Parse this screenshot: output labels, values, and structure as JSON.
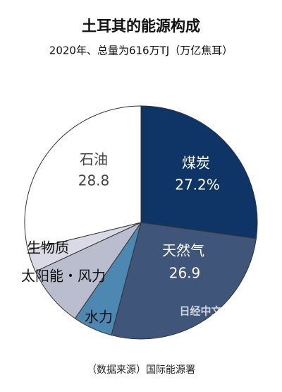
{
  "chart_data": {
    "type": "pie",
    "title": "土耳其的能源构成",
    "subtitle": "2020年、总量为616万TJ（万亿焦耳）",
    "categories": [
      "煤炭",
      "天然气",
      "水力",
      "太阳能・风力",
      "生物质",
      "石油"
    ],
    "values": [
      27.2,
      26.9,
      5.5,
      8.5,
      3.1,
      28.8
    ],
    "value_labels": [
      "27.2%",
      "26.9",
      null,
      null,
      null,
      "28.8"
    ],
    "colors": [
      "#0e3566",
      "#3f5579",
      "#4c88b2",
      "#babdcd",
      "#d9dae5",
      "#ffffff"
    ],
    "source": "（数据来源）国际能源署",
    "watermark": "日经中文网"
  }
}
